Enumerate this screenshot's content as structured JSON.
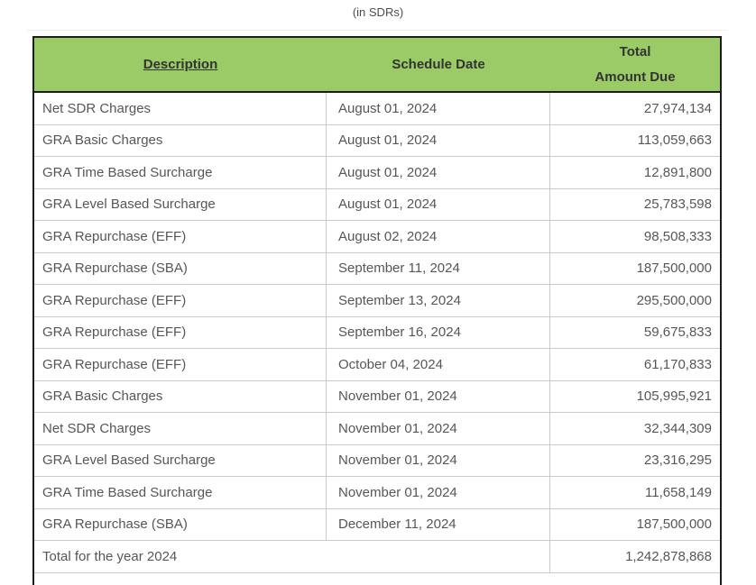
{
  "title": "(in SDRs)",
  "table": {
    "headers": {
      "description": "Description",
      "schedule_date": "Schedule Date",
      "amount_lines": [
        "Total",
        "Amount Due"
      ]
    },
    "rows": [
      {
        "description": "Net SDR Charges",
        "schedule_date": "August 01, 2024",
        "amount_due": "27,974,134"
      },
      {
        "description": "GRA Basic Charges",
        "schedule_date": "August 01, 2024",
        "amount_due": "113,059,663"
      },
      {
        "description": "GRA Time Based Surcharge",
        "schedule_date": "August 01, 2024",
        "amount_due": "12,891,800"
      },
      {
        "description": "GRA Level Based Surcharge",
        "schedule_date": "August 01, 2024",
        "amount_due": "25,783,598"
      },
      {
        "description": "GRA Repurchase (EFF)",
        "schedule_date": "August 02, 2024",
        "amount_due": "98,508,333"
      },
      {
        "description": "GRA Repurchase (SBA)",
        "schedule_date": "September 11, 2024",
        "amount_due": "187,500,000"
      },
      {
        "description": "GRA Repurchase (EFF)",
        "schedule_date": "September 13, 2024",
        "amount_due": "295,500,000"
      },
      {
        "description": "GRA Repurchase (EFF)",
        "schedule_date": "September 16, 2024",
        "amount_due": "59,675,833"
      },
      {
        "description": "GRA Repurchase (EFF)",
        "schedule_date": "October 04, 2024",
        "amount_due": "61,170,833"
      },
      {
        "description": "GRA Basic Charges",
        "schedule_date": "November 01, 2024",
        "amount_due": "105,995,921"
      },
      {
        "description": "Net SDR Charges",
        "schedule_date": "November 01, 2024",
        "amount_due": "32,344,309"
      },
      {
        "description": "GRA Level Based Surcharge",
        "schedule_date": "November 01, 2024",
        "amount_due": "23,316,295"
      },
      {
        "description": "GRA Time Based Surcharge",
        "schedule_date": "November 01, 2024",
        "amount_due": "11,658,149"
      },
      {
        "description": "GRA Repurchase (SBA)",
        "schedule_date": "December 11, 2024",
        "amount_due": "187,500,000"
      }
    ],
    "total": {
      "label": "Total for the year 2024",
      "amount_due": "1,242,878,868"
    }
  },
  "colors": {
    "header_background": "#9acb66",
    "header_text": "#333333",
    "body_text": "#54575a",
    "outer_border": "#1c1c1c",
    "inner_border": "#cbcbcb"
  }
}
